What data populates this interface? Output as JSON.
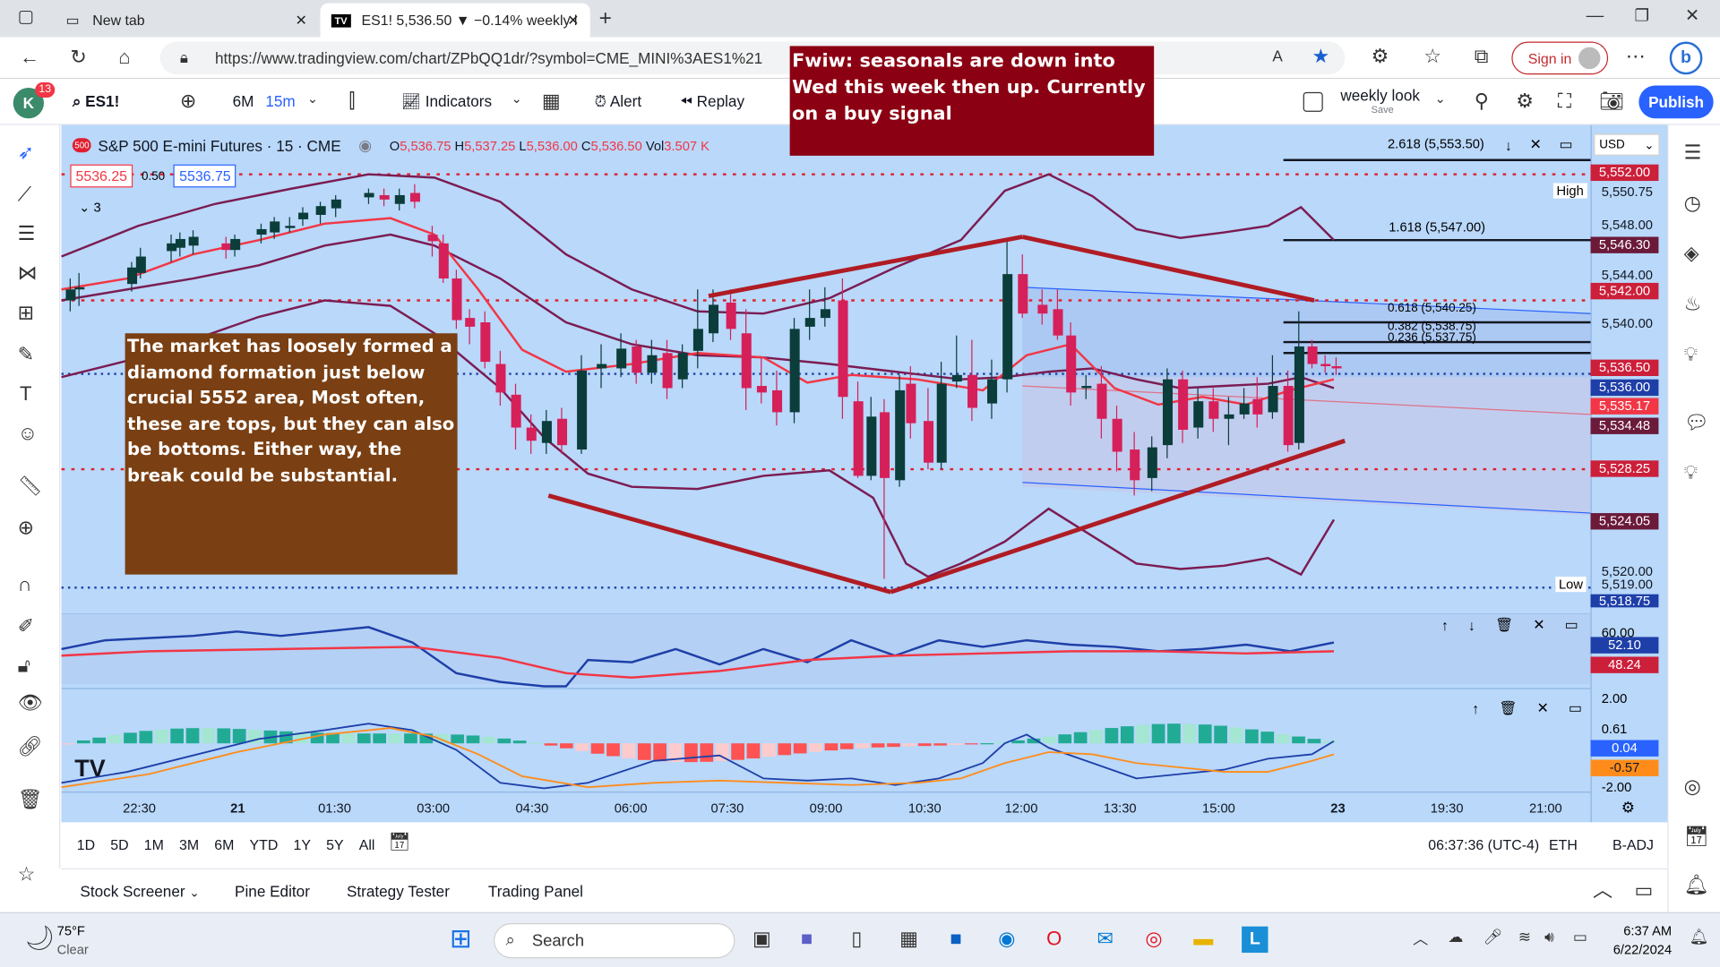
{
  "browser": {
    "tabs": [
      {
        "title": "New tab"
      },
      {
        "title": "ES1! 5,536.50 ▼ −0.14% weekly l"
      }
    ],
    "url": "https://www.tradingview.com/chart/ZPbQQ1dr/?symbol=CME_MINI%3AES1%21",
    "signin": "Sign in"
  },
  "toolbar": {
    "avatar": "K",
    "badge": "13",
    "symbol": "ES1!",
    "range": "6M",
    "interval": "15m",
    "indicators": "Indicators",
    "alert": "Alert",
    "replay": "Replay",
    "layout_name": "weekly look",
    "layout_save": "Save",
    "publish": "Publish"
  },
  "legend": {
    "title": "S&P 500 E-mini Futures · 15 · CME",
    "exchange_badge": "500",
    "open_l": "O",
    "open": "5,536.75",
    "high_l": "H",
    "high": "5,537.25",
    "low_l": "L",
    "low": "5,536.00",
    "close_l": "C",
    "close": "5,536.50",
    "vol_l": "Vol",
    "vol": "3.507 K",
    "bid": "5536.25",
    "spread": "0.50",
    "ask": "5536.75",
    "collapsed": "3"
  },
  "annotations": {
    "seasonal": "Fwiw: seasonals are down into Wed this week then up. Currently on a buy signal",
    "diamond": "The market has loosely formed a diamond formation just below crucial 5552 area, Most often, these are tops, but they can also be bottoms. Either way, the break could be substantial."
  },
  "fib": [
    {
      "label": "2.618 (5,553.50)"
    },
    {
      "label": "1.618 (5,547.00)"
    },
    {
      "label": "0.618 (5,540.25)"
    },
    {
      "label": "0.382 (5,538.75)"
    },
    {
      "label": "0.236 (5,537.75)"
    }
  ],
  "price_axis": {
    "currency": "USD",
    "ticks": [
      "5,548.00",
      "5,544.00",
      "5,540.00",
      "5,520.00"
    ],
    "high_tag": "High",
    "high": "5,550.75",
    "low_tag": "Low",
    "low": "5,519.00",
    "low2": "5,518.75",
    "labels": [
      {
        "v": "5,552.00",
        "color": "#cc1f3a"
      },
      {
        "v": "5,546.30",
        "color": "#6b1a3a"
      },
      {
        "v": "5,542.00",
        "color": "#cc1f3a"
      },
      {
        "v": "5,536.50",
        "color": "#cc1f3a"
      },
      {
        "v": "5,536.00",
        "color": "#1e3fa8"
      },
      {
        "v": "5,535.17",
        "color": "#f23645"
      },
      {
        "v": "5,534.48",
        "color": "#6b1a3a"
      },
      {
        "v": "5,528.25",
        "color": "#cc1f3a"
      },
      {
        "v": "5,524.05",
        "color": "#6b1a3a"
      }
    ]
  },
  "rsi": {
    "top": "60.00",
    "v1": "52.10",
    "v2": "48.24"
  },
  "macd": {
    "top": "2.00",
    "v1": "0.61",
    "v2": "0.04",
    "v3": "-0.57",
    "bottom": "-2.00"
  },
  "time_axis": [
    "22:30",
    "21",
    "01:30",
    "03:00",
    "04:30",
    "06:00",
    "07:30",
    "09:00",
    "10:30",
    "12:00",
    "13:30",
    "15:00",
    "23",
    "19:30",
    "21:00"
  ],
  "ranges": [
    "1D",
    "5D",
    "1M",
    "3M",
    "6M",
    "YTD",
    "1Y",
    "5Y",
    "All"
  ],
  "status": {
    "clock": "06:37:36 (UTC-4)",
    "session": "ETH",
    "adj": "B-ADJ"
  },
  "panels": [
    "Stock Screener",
    "Pine Editor",
    "Strategy Tester",
    "Trading Panel"
  ],
  "taskbar": {
    "temp": "75°F",
    "weather": "Clear",
    "search": "Search",
    "time": "6:37 AM",
    "date": "6/22/2024"
  }
}
